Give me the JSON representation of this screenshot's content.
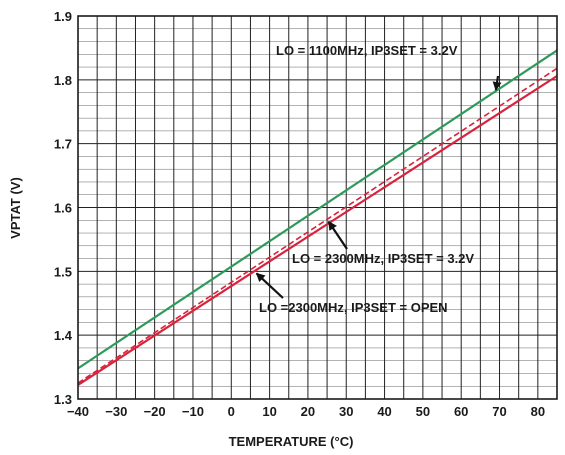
{
  "chart_data": {
    "type": "line",
    "xlabel": "TEMPERATURE (°C)",
    "ylabel": "VPTAT (V)",
    "xlim": [
      -40,
      85
    ],
    "ylim": [
      1.3,
      1.9
    ],
    "xticks": [
      -40,
      -30,
      -20,
      -10,
      0,
      10,
      20,
      30,
      40,
      50,
      60,
      70,
      80
    ],
    "yticks": [
      1.3,
      1.4,
      1.5,
      1.6,
      1.7,
      1.8,
      1.9
    ],
    "grid": true,
    "series": [
      {
        "key": "lo1100",
        "color": "#2e9a5a",
        "dash": false,
        "x": [
          -40,
          85
        ],
        "y": [
          1.348,
          1.846
        ]
      },
      {
        "key": "lo2300_32",
        "color": "#d9223c",
        "dash": true,
        "x": [
          -40,
          85
        ],
        "y": [
          1.325,
          1.818
        ]
      },
      {
        "key": "lo2300_open",
        "color": "#d9223c",
        "dash": false,
        "x": [
          -40,
          85
        ],
        "y": [
          1.322,
          1.806
        ]
      }
    ],
    "annotations": [
      {
        "text": "LO = 1100MHz, IP3SET = 3.2V",
        "series": "lo1100",
        "at_x": 69
      },
      {
        "text": "LO = 2300MHz, IP3SET = 3.2V",
        "series": "lo2300_32",
        "at_x": 25
      },
      {
        "text": "LO =2300MHz, IP3SET = OPEN",
        "series": "lo2300_open",
        "at_x": 6
      }
    ]
  }
}
